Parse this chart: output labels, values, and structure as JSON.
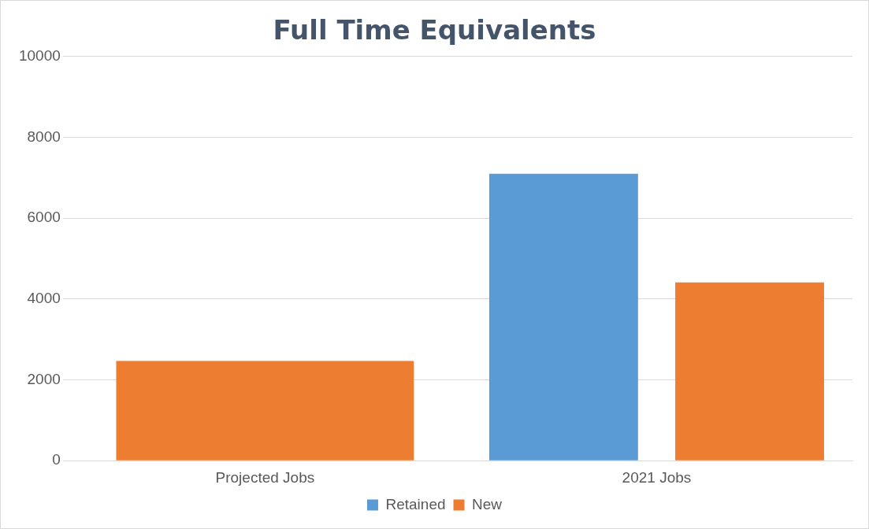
{
  "chart_data": {
    "type": "bar",
    "title": "Full Time Equivalents",
    "categories": [
      "Projected Jobs",
      "2021 Jobs"
    ],
    "series": [
      {
        "name": "Retained",
        "color": "#5b9bd5",
        "values": [
          null,
          7100
        ]
      },
      {
        "name": "New",
        "color": "#ed7d31",
        "values": [
          2470,
          4410
        ]
      }
    ],
    "ylim": [
      0,
      10000
    ],
    "yticks": [
      0,
      2000,
      4000,
      6000,
      8000,
      10000
    ],
    "grid": "y",
    "legend": "bottom"
  }
}
